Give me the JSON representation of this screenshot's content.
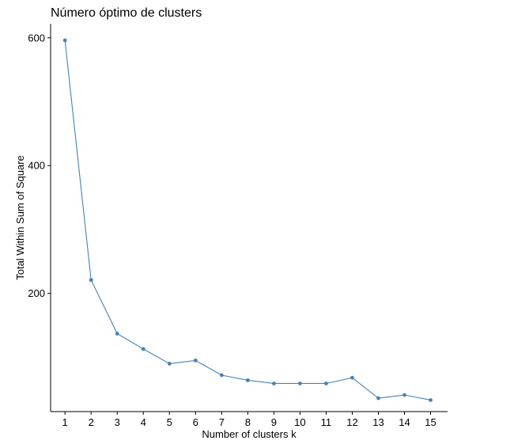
{
  "chart_data": {
    "type": "line",
    "title": "Número óptimo de clusters",
    "xlabel": "Number of clusters k",
    "ylabel": "Total Within Sum of Square",
    "x": [
      1,
      2,
      3,
      4,
      5,
      6,
      7,
      8,
      9,
      10,
      11,
      12,
      13,
      14,
      15
    ],
    "x_tick_labels": [
      "1",
      "2",
      "3",
      "4",
      "5",
      "6",
      "7",
      "8",
      "9",
      "10",
      "11",
      "12",
      "13",
      "14",
      "15"
    ],
    "y_ticks": [
      200,
      400,
      600
    ],
    "y_tick_labels": [
      "200",
      "400",
      "600"
    ],
    "xlim": [
      0.45,
      15.65
    ],
    "ylim": [
      15,
      622
    ],
    "series": [
      {
        "values": [
          596,
          221,
          137,
          113,
          90,
          95,
          72,
          64,
          59,
          59,
          59,
          68,
          36,
          41,
          33
        ],
        "color": "#4682B4"
      }
    ],
    "grid": false,
    "legend": "none"
  }
}
